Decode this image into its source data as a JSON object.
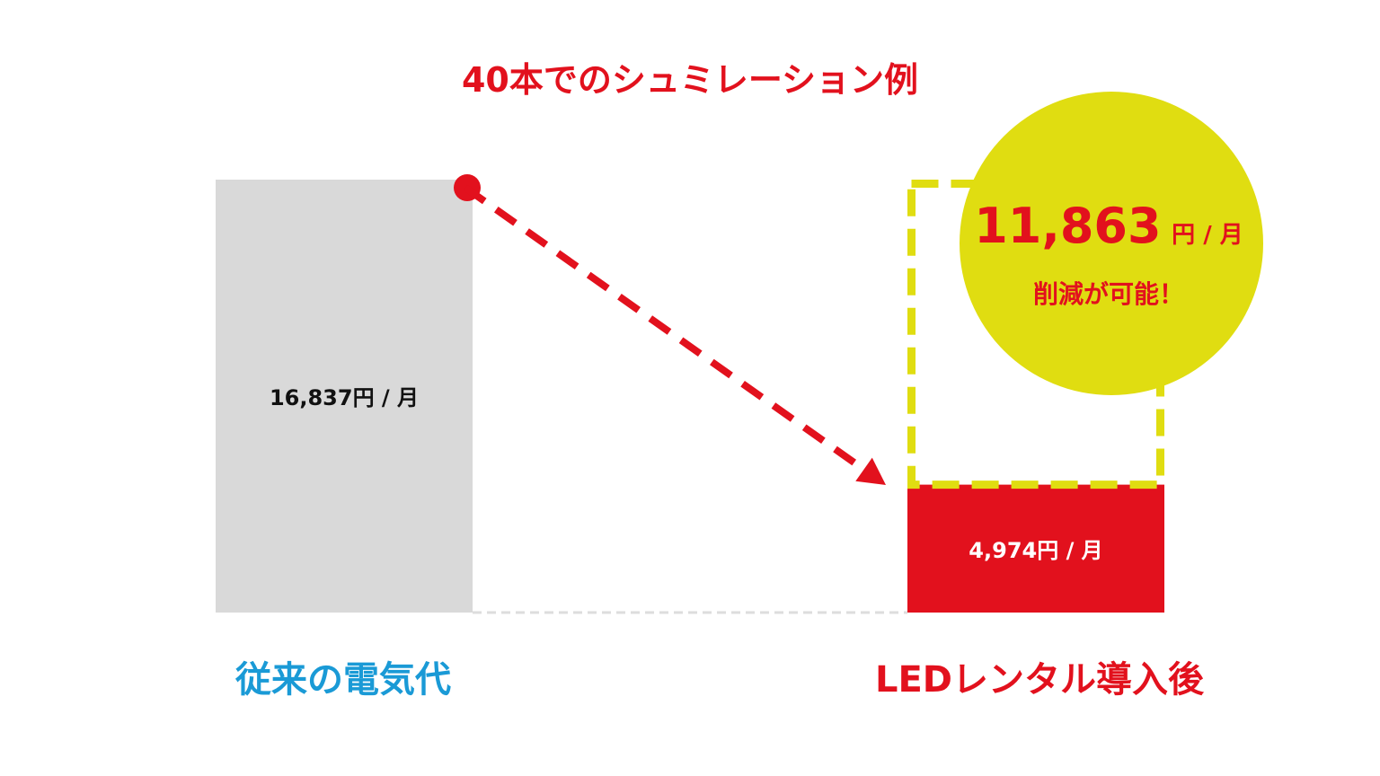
{
  "chart_data": {
    "type": "bar",
    "title": "40本でのシュミレーション例",
    "categories": [
      "従来の電気代",
      "LEDレンタル導入後"
    ],
    "values": [
      16837,
      4974
    ],
    "value_labels": [
      "16,837円 / 月",
      "4,974円 / 月"
    ],
    "unit_suffix": "円 / 月",
    "savings": {
      "amount": "11,863",
      "unit": "円 / 月",
      "caption": "削減が可能！"
    },
    "colors": {
      "title": "#e2111d",
      "before_bar": "#d9d9d9",
      "after_bar": "#e2111d",
      "before_label": "#1a9ad6",
      "after_label": "#e2111d",
      "savings_circle": "#e0dd11",
      "savings_outline": "#e0dd11",
      "arrow": "#e2111d",
      "baseline": "#dddddd",
      "value_text_dark": "#111111",
      "value_text_light": "#ffffff"
    }
  }
}
